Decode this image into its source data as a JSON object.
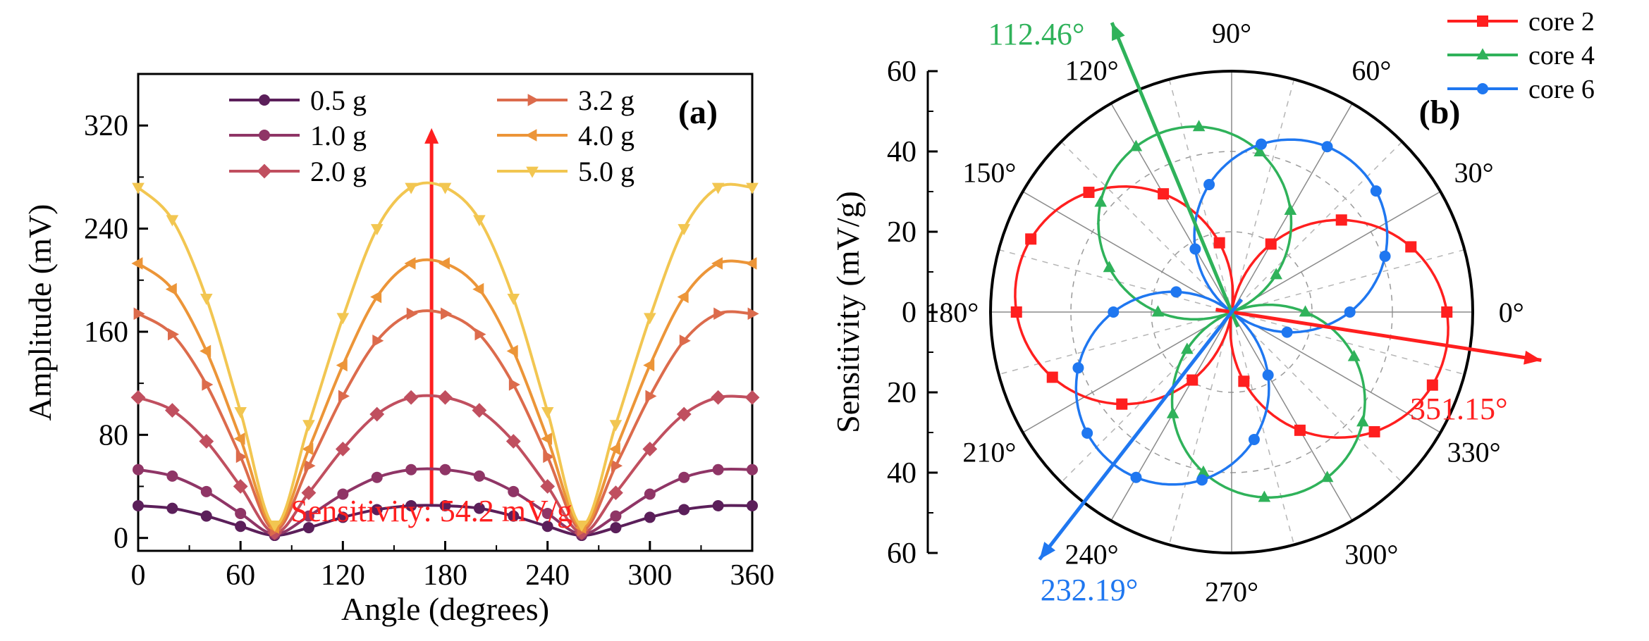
{
  "chart_data": [
    {
      "panel_label": "(a)",
      "type": "line",
      "xlabel": "Angle (degrees)",
      "ylabel": "Amplitude (mV)",
      "xlim": [
        0,
        360
      ],
      "ylim": [
        -10,
        360
      ],
      "x_ticks": [
        0,
        60,
        120,
        180,
        240,
        300,
        360
      ],
      "y_ticks": [
        0,
        80,
        160,
        240,
        320
      ],
      "grid": false,
      "legend_position": "top",
      "x": [
        0,
        20,
        40,
        60,
        80,
        100,
        120,
        140,
        160,
        180,
        200,
        220,
        240,
        260,
        280,
        300,
        320,
        340,
        360
      ],
      "series": [
        {
          "name": "0.5 g",
          "color": "#5b1f5a",
          "marker": "circle",
          "values": [
            25,
            23,
            17,
            9,
            2,
            8,
            16,
            22,
            25,
            25,
            23,
            17,
            9,
            2,
            8,
            16,
            22,
            25,
            25
          ]
        },
        {
          "name": "1.0 g",
          "color": "#8f3566",
          "marker": "circle",
          "values": [
            53,
            48,
            36,
            19,
            3,
            17,
            34,
            47,
            53,
            53,
            48,
            36,
            19,
            3,
            17,
            34,
            47,
            53,
            53
          ]
        },
        {
          "name": "2.0 g",
          "color": "#c04f5f",
          "marker": "diamond",
          "values": [
            109,
            99,
            75,
            40,
            4,
            35,
            69,
            96,
            109,
            109,
            99,
            75,
            40,
            4,
            35,
            69,
            96,
            109,
            109
          ]
        },
        {
          "name": "3.2 g",
          "color": "#dc6b4c",
          "marker": "triangle-right",
          "values": [
            174,
            158,
            119,
            63,
            6,
            56,
            110,
            153,
            174,
            174,
            158,
            119,
            63,
            6,
            56,
            110,
            153,
            174,
            174
          ]
        },
        {
          "name": "4.0 g",
          "color": "#ec9538",
          "marker": "triangle-left",
          "values": [
            213,
            193,
            145,
            77,
            8,
            69,
            134,
            187,
            213,
            213,
            193,
            145,
            77,
            8,
            69,
            134,
            187,
            213,
            213
          ]
        },
        {
          "name": "5.0 g",
          "color": "#f2c651",
          "marker": "triangle-down",
          "values": [
            272,
            247,
            186,
            98,
            10,
            88,
            171,
            240,
            272,
            272,
            247,
            186,
            98,
            10,
            88,
            171,
            240,
            272,
            272
          ]
        }
      ],
      "annotation": {
        "text": "Sensitivity: 54.2 mV/g",
        "x": 172,
        "y_from": 25,
        "y_to": 318,
        "color": "#ff1f1f"
      }
    },
    {
      "panel_label": "(b)",
      "type": "polar",
      "ylabel": "Sensitivity (mV/g)",
      "r_max": 60,
      "r_ticks": [
        0,
        20,
        40,
        60
      ],
      "r_axis_labels_top": [
        "0",
        "20",
        "40",
        "60"
      ],
      "r_axis_labels_bottom": [
        "20",
        "40",
        "60"
      ],
      "angle_labels": [
        "0°",
        "30°",
        "60°",
        "90°",
        "120°",
        "150°",
        "180°",
        "210°",
        "240°",
        "270°",
        "300°",
        "330°"
      ],
      "legend_position": "top-right",
      "series": [
        {
          "name": "core 2",
          "color": "#ff1f1f",
          "marker": "square",
          "peak": 54.2,
          "direction_deg": 351.15,
          "lobes": 2
        },
        {
          "name": "core 4",
          "color": "#2fb25a",
          "marker": "triangle-up",
          "peak": 48,
          "direction_deg": 112.46,
          "lobes": 2
        },
        {
          "name": "core 6",
          "color": "#1f77f0",
          "marker": "circle",
          "peak": 48,
          "direction_deg": 232.19,
          "lobes": 2
        }
      ],
      "arrows": [
        {
          "text": "351.15°",
          "angle_deg": 351.15,
          "color": "#ff1f1f"
        },
        {
          "text": "112.46°",
          "angle_deg": 112.46,
          "color": "#2fb25a"
        },
        {
          "text": "232.19°",
          "angle_deg": 232.19,
          "color": "#1f77f0"
        }
      ]
    }
  ]
}
